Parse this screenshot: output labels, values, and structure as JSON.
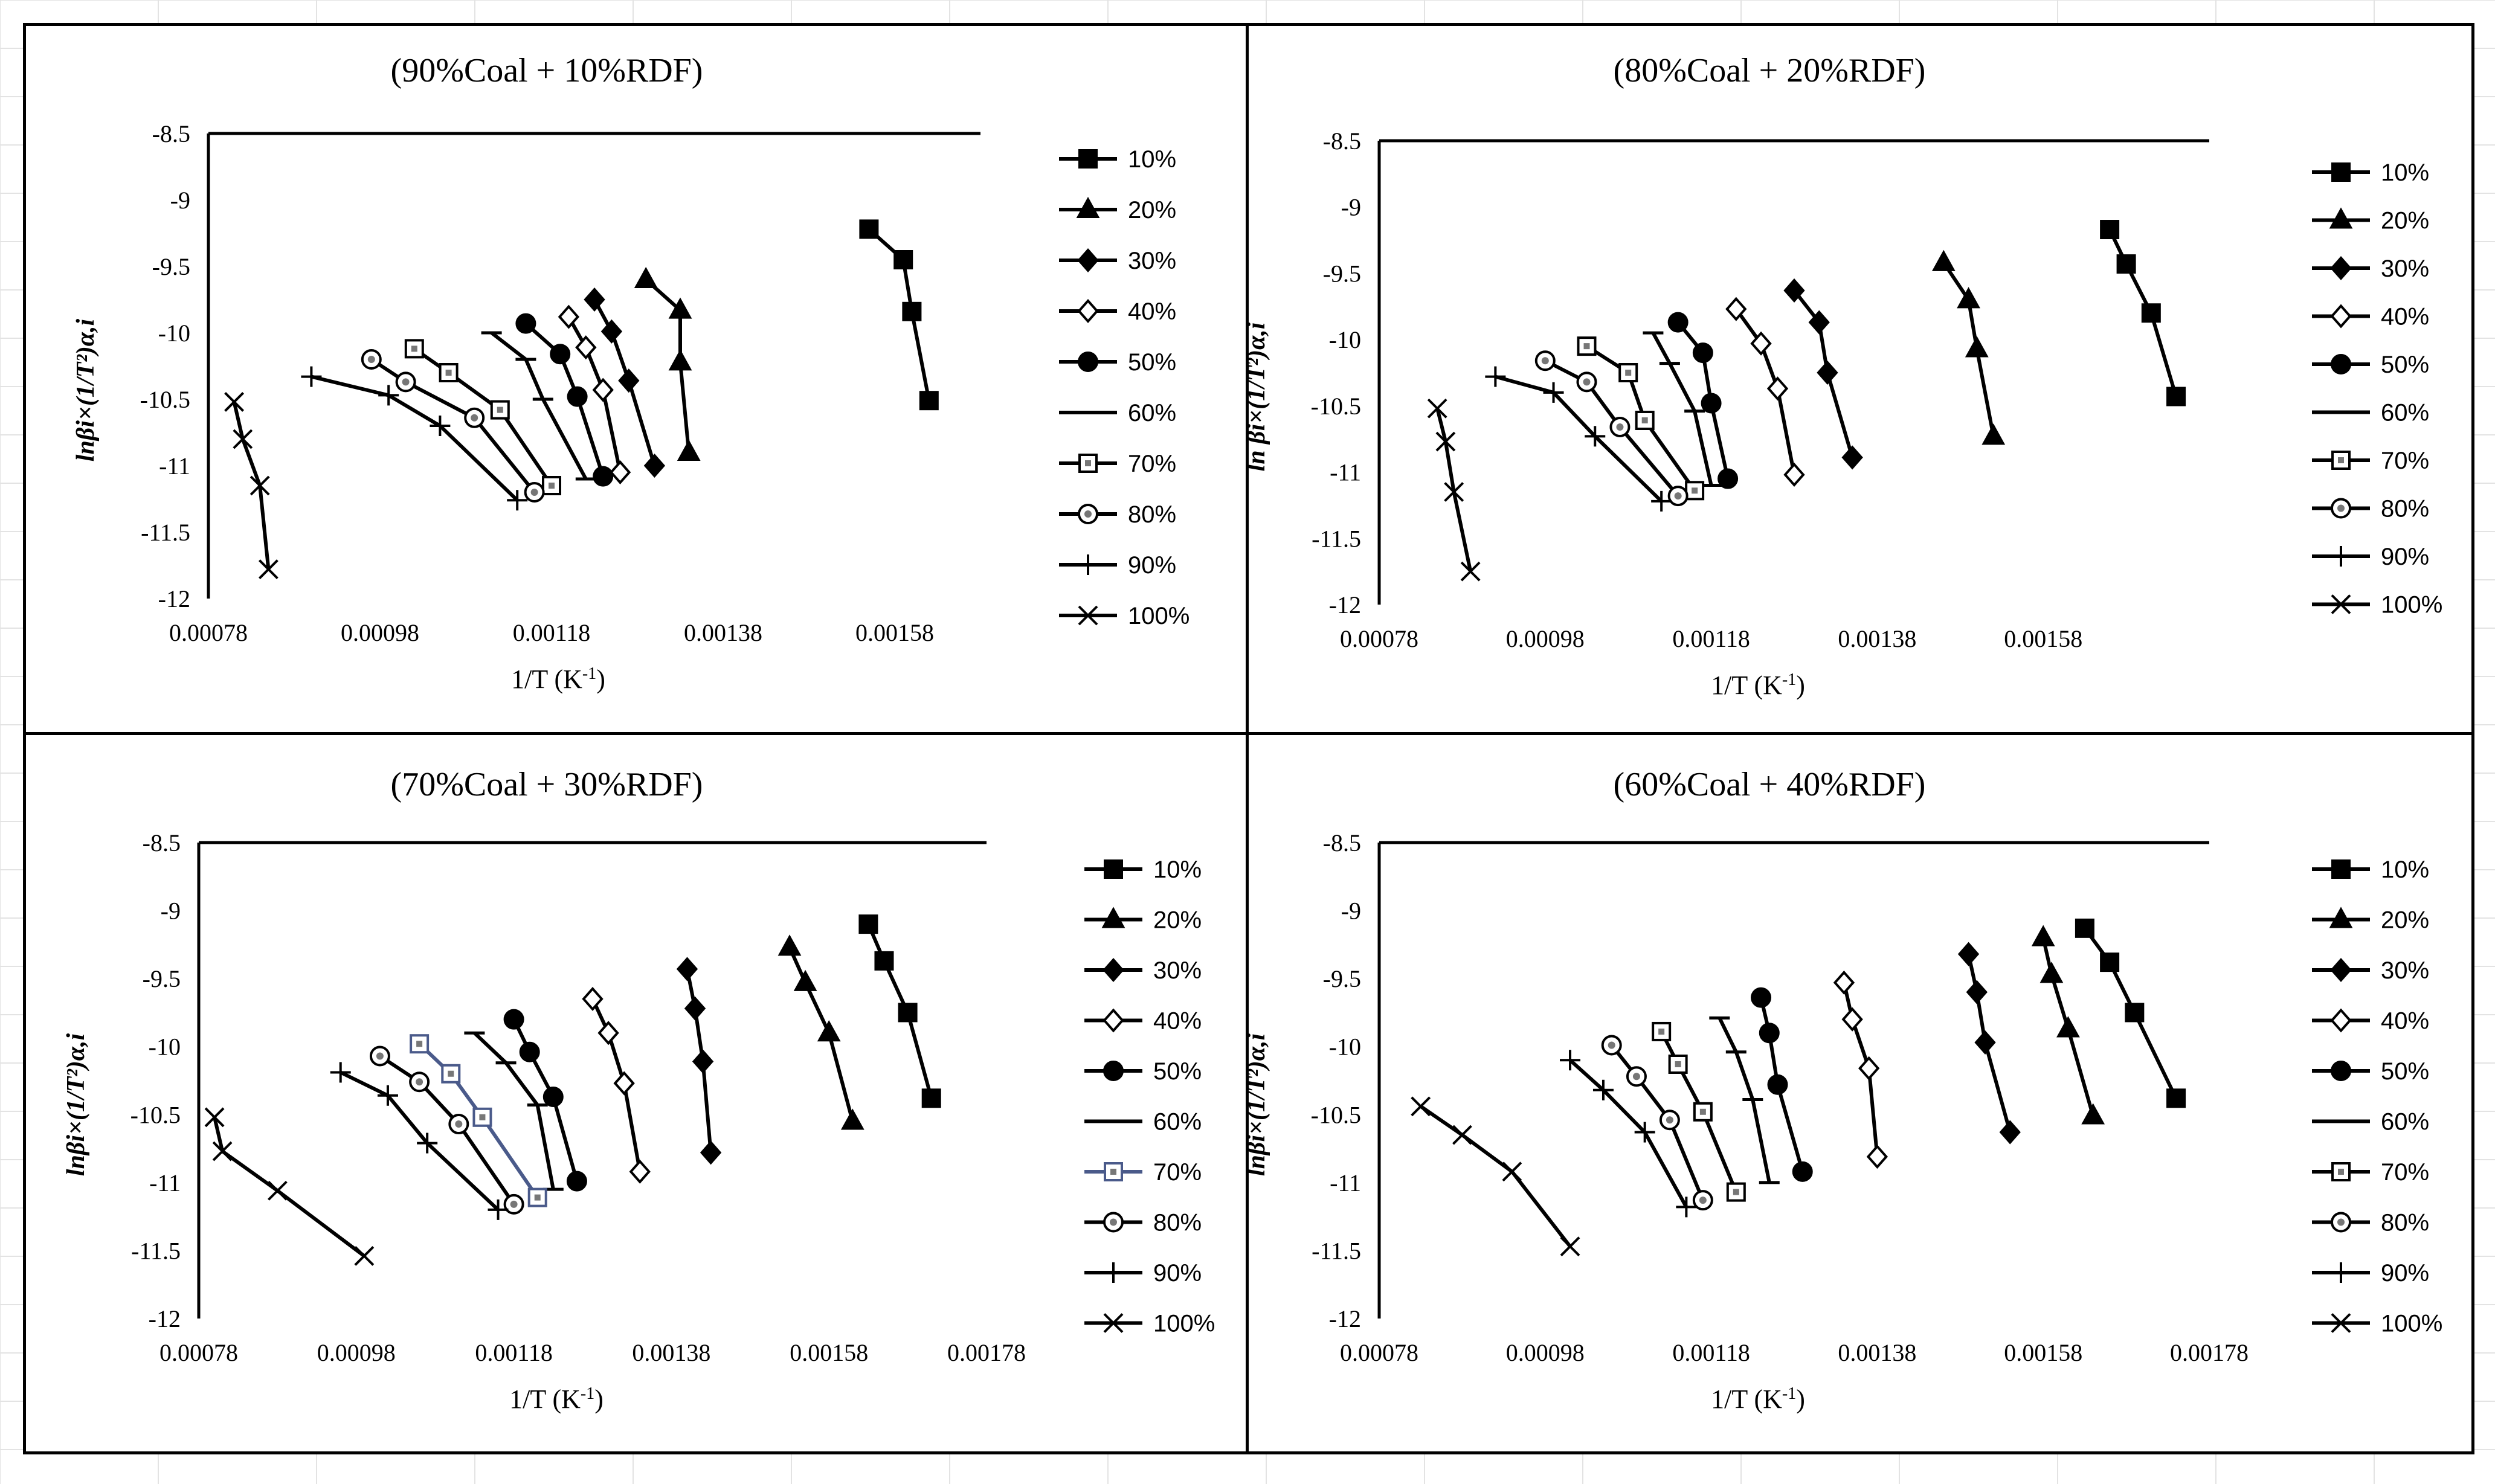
{
  "chart_data": [
    {
      "type": "line",
      "title": "(90%Coal + 10%RDF)",
      "xlabel": "1/T (K",
      "xlabel_sup": "-1",
      "xlabel_end": ")",
      "ylabel": "lnβi×(1/T²)α,i",
      "xlim": [
        0.00078,
        0.00168
      ],
      "ylim": [
        -12,
        -8.5
      ],
      "x_ticks": [
        "0.00078",
        "0.00098",
        "0.00118",
        "0.00138",
        "0.00158"
      ],
      "y_ticks": [
        "-8.5",
        "-9",
        "-9.5",
        "-10",
        "-10.5",
        "-11",
        "-11.5",
        "-12"
      ],
      "series": [
        {
          "name": "10%",
          "marker": "square",
          "color": "#000000",
          "x": [
            0.00155,
            0.00159,
            0.0016,
            0.00162
          ],
          "y": [
            -9.22,
            -9.45,
            -9.84,
            -10.51
          ]
        },
        {
          "name": "20%",
          "marker": "triangle",
          "color": "#000000",
          "x": [
            0.00129,
            0.00133,
            0.00133,
            0.00134
          ],
          "y": [
            -9.6,
            -9.83,
            -10.22,
            -10.9
          ]
        },
        {
          "name": "30%",
          "marker": "diamond",
          "color": "#000000",
          "x": [
            0.00123,
            0.00125,
            0.00127,
            0.0013
          ],
          "y": [
            -9.75,
            -9.99,
            -10.36,
            -11.0
          ]
        },
        {
          "name": "40%",
          "marker": "diamond-open",
          "color": "#000000",
          "x": [
            0.0012,
            0.00122,
            0.00124,
            0.00126
          ],
          "y": [
            -9.88,
            -10.11,
            -10.43,
            -11.05
          ]
        },
        {
          "name": "50%",
          "marker": "circle",
          "color": "#000000",
          "x": [
            0.00115,
            0.00119,
            0.00121,
            0.00124
          ],
          "y": [
            -9.93,
            -10.16,
            -10.48,
            -11.08
          ]
        },
        {
          "name": "60%",
          "marker": "dash",
          "color": "#000000",
          "x": [
            0.00111,
            0.00115,
            0.00117,
            0.00122
          ],
          "y": [
            -10.0,
            -10.2,
            -10.5,
            -11.1
          ]
        },
        {
          "name": "70%",
          "marker": "square-open",
          "color": "#000000",
          "x": [
            0.00102,
            0.00106,
            0.00112,
            0.00118
          ],
          "y": [
            -10.12,
            -10.3,
            -10.58,
            -11.15
          ]
        },
        {
          "name": "80%",
          "marker": "circle-open",
          "color": "#000000",
          "x": [
            0.00097,
            0.00101,
            0.00109,
            0.00116
          ],
          "y": [
            -10.2,
            -10.37,
            -10.64,
            -11.2
          ]
        },
        {
          "name": "90%",
          "marker": "plus",
          "color": "#000000",
          "x": [
            0.0009,
            0.00099,
            0.00105,
            0.00114
          ],
          "y": [
            -10.33,
            -10.47,
            -10.7,
            -11.26
          ]
        },
        {
          "name": "100%",
          "marker": "x",
          "color": "#000000",
          "x": [
            0.00081,
            0.00082,
            0.00084,
            0.00085
          ],
          "y": [
            -10.52,
            -10.8,
            -11.15,
            -11.78
          ]
        }
      ]
    },
    {
      "type": "line",
      "title": "(80%Coal + 20%RDF)",
      "xlabel": "1/T (K",
      "xlabel_sup": "-1",
      "xlabel_end": ")",
      "ylabel": "ln βi×(1/T²)α,i",
      "xlim": [
        0.00078,
        0.00178
      ],
      "ylim": [
        -12,
        -8.5
      ],
      "x_ticks": [
        "0.00078",
        "0.00098",
        "0.00118",
        "0.00138",
        "0.00158"
      ],
      "y_ticks": [
        "-8.5",
        "-9",
        "-9.5",
        "-10",
        "-10.5",
        "-11",
        "-11.5",
        "-12"
      ],
      "series": [
        {
          "name": "10%",
          "marker": "square",
          "color": "#000000",
          "x": [
            0.00166,
            0.00168,
            0.00171,
            0.00174
          ],
          "y": [
            -9.17,
            -9.43,
            -9.8,
            -10.43
          ]
        },
        {
          "name": "20%",
          "marker": "triangle",
          "color": "#000000",
          "x": [
            0.00146,
            0.00149,
            0.0015,
            0.00152
          ],
          "y": [
            -9.42,
            -9.7,
            -10.07,
            -10.73
          ]
        },
        {
          "name": "30%",
          "marker": "diamond",
          "color": "#000000",
          "x": [
            0.00128,
            0.00131,
            0.00132,
            0.00135
          ],
          "y": [
            -9.63,
            -9.87,
            -10.25,
            -10.89
          ]
        },
        {
          "name": "40%",
          "marker": "diamond-open",
          "color": "#000000",
          "x": [
            0.00121,
            0.00124,
            0.00126,
            0.00128
          ],
          "y": [
            -9.77,
            -10.03,
            -10.37,
            -11.02
          ]
        },
        {
          "name": "50%",
          "marker": "circle",
          "color": "#000000",
          "x": [
            0.00114,
            0.00117,
            0.00118,
            0.0012
          ],
          "y": [
            -9.87,
            -10.1,
            -10.48,
            -11.05
          ]
        },
        {
          "name": "60%",
          "marker": "dash",
          "color": "#000000",
          "x": [
            0.00111,
            0.00113,
            0.00116,
            0.00118
          ],
          "y": [
            -9.95,
            -10.18,
            -10.54,
            -11.1
          ]
        },
        {
          "name": "70%",
          "marker": "square-open",
          "color": "#000000",
          "x": [
            0.00103,
            0.00108,
            0.0011,
            0.00116
          ],
          "y": [
            -10.05,
            -10.25,
            -10.61,
            -11.14
          ]
        },
        {
          "name": "80%",
          "marker": "circle-open",
          "color": "#000000",
          "x": [
            0.00098,
            0.00103,
            0.00107,
            0.00114
          ],
          "y": [
            -10.16,
            -10.32,
            -10.66,
            -11.18
          ]
        },
        {
          "name": "90%",
          "marker": "plus",
          "color": "#000000",
          "x": [
            0.00092,
            0.00099,
            0.00104,
            0.00112
          ],
          "y": [
            -10.28,
            -10.4,
            -10.73,
            -11.22
          ]
        },
        {
          "name": "100%",
          "marker": "x",
          "color": "#000000",
          "x": [
            0.00085,
            0.00086,
            0.00087,
            0.00089
          ],
          "y": [
            -10.52,
            -10.77,
            -11.15,
            -11.75
          ]
        }
      ]
    },
    {
      "type": "line",
      "title": "(70%Coal + 30%RDF)",
      "xlabel": "1/T (K",
      "xlabel_sup": "-1",
      "xlabel_end": ")",
      "ylabel": "lnβi×(1/T²)α,i",
      "xlim": [
        0.00078,
        0.00178
      ],
      "ylim": [
        -12,
        -8.5
      ],
      "x_ticks": [
        "0.00078",
        "0.00098",
        "0.00118",
        "0.00138",
        "0.00158",
        "0.00178"
      ],
      "y_ticks": [
        "-8.5",
        "-9",
        "-9.5",
        "-10",
        "-10.5",
        "-11",
        "-11.5",
        "-12"
      ],
      "series": [
        {
          "name": "10%",
          "marker": "square",
          "color": "#000000",
          "x": [
            0.00163,
            0.00165,
            0.00168,
            0.00171
          ],
          "y": [
            -9.1,
            -9.37,
            -9.75,
            -10.38
          ]
        },
        {
          "name": "20%",
          "marker": "triangle",
          "color": "#000000",
          "x": [
            0.00153,
            0.00155,
            0.00158,
            0.00161
          ],
          "y": [
            -9.27,
            -9.53,
            -9.9,
            -10.55
          ]
        },
        {
          "name": "30%",
          "marker": "diamond",
          "color": "#000000",
          "x": [
            0.0014,
            0.00141,
            0.00142,
            0.00143
          ],
          "y": [
            -9.43,
            -9.72,
            -10.11,
            -10.78
          ]
        },
        {
          "name": "40%",
          "marker": "diamond-open",
          "color": "#000000",
          "x": [
            0.00128,
            0.0013,
            0.00132,
            0.00134
          ],
          "y": [
            -9.65,
            -9.9,
            -10.27,
            -10.92
          ]
        },
        {
          "name": "50%",
          "marker": "circle",
          "color": "#000000",
          "x": [
            0.00118,
            0.0012,
            0.00123,
            0.00126
          ],
          "y": [
            -9.8,
            -10.04,
            -10.37,
            -10.99
          ]
        },
        {
          "name": "60%",
          "marker": "dash",
          "color": "#000000",
          "x": [
            0.00113,
            0.00117,
            0.00121,
            0.00123
          ],
          "y": [
            -9.9,
            -10.12,
            -10.43,
            -11.05
          ]
        },
        {
          "name": "70%",
          "marker": "square-open",
          "color": "#4a5a8a",
          "x": [
            0.00106,
            0.0011,
            0.00114,
            0.00121
          ],
          "y": [
            -9.98,
            -10.2,
            -10.52,
            -11.11
          ]
        },
        {
          "name": "80%",
          "marker": "circle-open",
          "color": "#000000",
          "x": [
            0.00101,
            0.00106,
            0.00111,
            0.00118
          ],
          "y": [
            -10.07,
            -10.26,
            -10.57,
            -11.16
          ]
        },
        {
          "name": "90%",
          "marker": "plus",
          "color": "#000000",
          "x": [
            0.00096,
            0.00102,
            0.00107,
            0.00116
          ],
          "y": [
            -10.19,
            -10.36,
            -10.71,
            -11.2
          ]
        },
        {
          "name": "100%",
          "marker": "x",
          "color": "#000000",
          "x": [
            0.0008,
            0.00081,
            0.00088,
            0.00099
          ],
          "y": [
            -10.52,
            -10.77,
            -11.06,
            -11.54
          ]
        }
      ]
    },
    {
      "type": "line",
      "title": "(60%Coal + 40%RDF)",
      "xlabel": "1/T (K",
      "xlabel_sup": "-1",
      "xlabel_end": ")",
      "ylabel": "lnβi×(1/T²)α,i",
      "xlim": [
        0.00078,
        0.00178
      ],
      "ylim": [
        -12,
        -8.5
      ],
      "x_ticks": [
        "0.00078",
        "0.00098",
        "0.00118",
        "0.00138",
        "0.00158",
        "0.00178"
      ],
      "y_ticks": [
        "-8.5",
        "-9",
        "-9.5",
        "-10",
        "-10.5",
        "-11",
        "-11.5",
        "-12"
      ],
      "series": [
        {
          "name": "10%",
          "marker": "square",
          "color": "#000000",
          "x": [
            0.00163,
            0.00166,
            0.00169,
            0.00174
          ],
          "y": [
            -9.13,
            -9.38,
            -9.75,
            -10.38
          ]
        },
        {
          "name": "20%",
          "marker": "triangle",
          "color": "#000000",
          "x": [
            0.00158,
            0.00159,
            0.00161,
            0.00164
          ],
          "y": [
            -9.2,
            -9.47,
            -9.87,
            -10.51
          ]
        },
        {
          "name": "30%",
          "marker": "diamond",
          "color": "#000000",
          "x": [
            0.00149,
            0.0015,
            0.00151,
            0.00154
          ],
          "y": [
            -9.32,
            -9.6,
            -9.97,
            -10.63
          ]
        },
        {
          "name": "40%",
          "marker": "diamond-open",
          "color": "#000000",
          "x": [
            0.00134,
            0.00135,
            0.00137,
            0.00138
          ],
          "y": [
            -9.53,
            -9.8,
            -10.16,
            -10.81
          ]
        },
        {
          "name": "50%",
          "marker": "circle",
          "color": "#000000",
          "x": [
            0.00124,
            0.00125,
            0.00126,
            0.00129
          ],
          "y": [
            -9.64,
            -9.9,
            -10.28,
            -10.92
          ]
        },
        {
          "name": "60%",
          "marker": "dash",
          "color": "#000000",
          "x": [
            0.00119,
            0.00121,
            0.00123,
            0.00125
          ],
          "y": [
            -9.79,
            -10.04,
            -10.39,
            -11.0
          ]
        },
        {
          "name": "70%",
          "marker": "square-open",
          "color": "#000000",
          "x": [
            0.00112,
            0.00114,
            0.00117,
            0.00121
          ],
          "y": [
            -9.89,
            -10.13,
            -10.48,
            -11.07
          ]
        },
        {
          "name": "80%",
          "marker": "circle-open",
          "color": "#000000",
          "x": [
            0.00106,
            0.00109,
            0.00113,
            0.00117
          ],
          "y": [
            -9.99,
            -10.22,
            -10.54,
            -11.13
          ]
        },
        {
          "name": "90%",
          "marker": "plus",
          "color": "#000000",
          "x": [
            0.00101,
            0.00105,
            0.0011,
            0.00115
          ],
          "y": [
            -10.1,
            -10.32,
            -10.63,
            -11.18
          ]
        },
        {
          "name": "100%",
          "marker": "x",
          "color": "#000000",
          "x": [
            0.00083,
            0.00088,
            0.00094,
            0.00101
          ],
          "y": [
            -10.44,
            -10.65,
            -10.92,
            -11.47
          ]
        }
      ]
    }
  ]
}
